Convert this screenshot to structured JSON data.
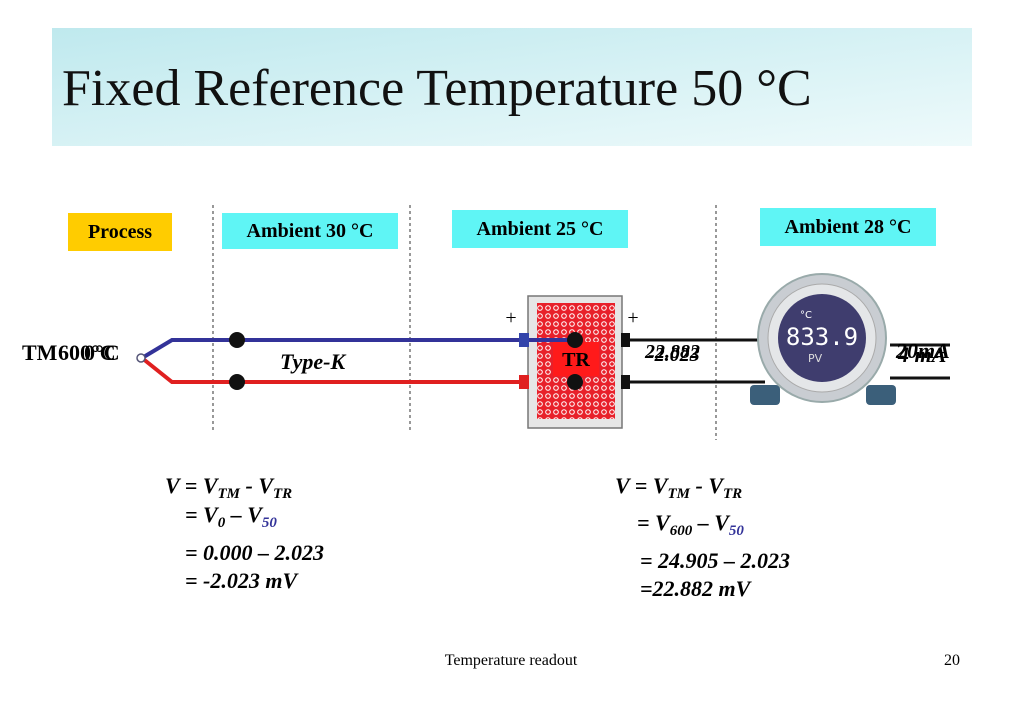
{
  "header": {
    "title": "Fixed Reference Temperature 50 °C"
  },
  "labels": {
    "process": "Process",
    "ambient_1": "Ambient 30 °C",
    "ambient_2": "Ambient 25 °C",
    "ambient_3": "Ambient 28 °C"
  },
  "diagram": {
    "tm": "TM",
    "tm_temp_1": "600°C",
    "tm_temp_2": "0°C",
    "wire_type": "Type-K",
    "tr": "TR",
    "plus_1": "+",
    "plus_2": "+",
    "reading_1": "22.882",
    "reading_2": "-2.023",
    "current_1": "20mA",
    "current_2": "4 mA",
    "display_unit": "°C",
    "display_value": "833.9",
    "display_mode": "PV"
  },
  "equations": {
    "left": [
      [
        "V = V",
        "TM",
        " - V",
        "TR"
      ],
      [
        "= V",
        "0",
        " – V",
        "50"
      ],
      [
        "= 0.000 – 2.023"
      ],
      [
        "= -2.023 mV"
      ]
    ],
    "right": [
      [
        "V = V",
        "TM",
        " - V",
        "TR"
      ],
      [
        "= V",
        "600",
        " – V",
        "50"
      ],
      [
        "= 24.905 – 2.023"
      ],
      [
        "=22.882 mV"
      ]
    ]
  },
  "footer": {
    "text": "Temperature readout",
    "page": "20"
  }
}
